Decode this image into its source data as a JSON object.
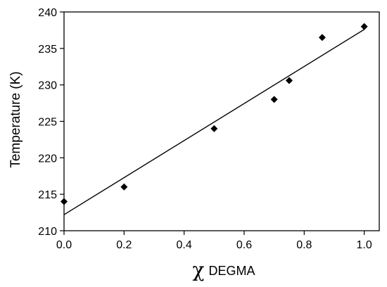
{
  "chart_data": {
    "type": "scatter",
    "title": "",
    "xlabel_symbol": "χ",
    "xlabel_subscript": "DEGMA",
    "ylabel": "Temperature (K)",
    "xlim": [
      0.0,
      1.05
    ],
    "ylim": [
      210,
      240
    ],
    "x_ticks": [
      "0.0",
      "0.2",
      "0.4",
      "0.6",
      "0.8",
      "1.0"
    ],
    "x_tick_values": [
      0.0,
      0.2,
      0.4,
      0.6,
      0.8,
      1.0
    ],
    "y_ticks": [
      "210",
      "215",
      "220",
      "225",
      "230",
      "235",
      "240"
    ],
    "y_tick_values": [
      210,
      215,
      220,
      225,
      230,
      235,
      240
    ],
    "grid": false,
    "marker": "diamond",
    "marker_color": "#000000",
    "points": [
      {
        "x": 0.0,
        "y": 214.0
      },
      {
        "x": 0.2,
        "y": 216.0
      },
      {
        "x": 0.5,
        "y": 224.0
      },
      {
        "x": 0.7,
        "y": 228.0
      },
      {
        "x": 0.75,
        "y": 230.6
      },
      {
        "x": 0.86,
        "y": 236.5
      },
      {
        "x": 1.0,
        "y": 238.0
      }
    ],
    "fit_line": {
      "x": [
        0.0,
        1.0
      ],
      "y": [
        212.2,
        237.6
      ],
      "color": "#000000"
    }
  }
}
